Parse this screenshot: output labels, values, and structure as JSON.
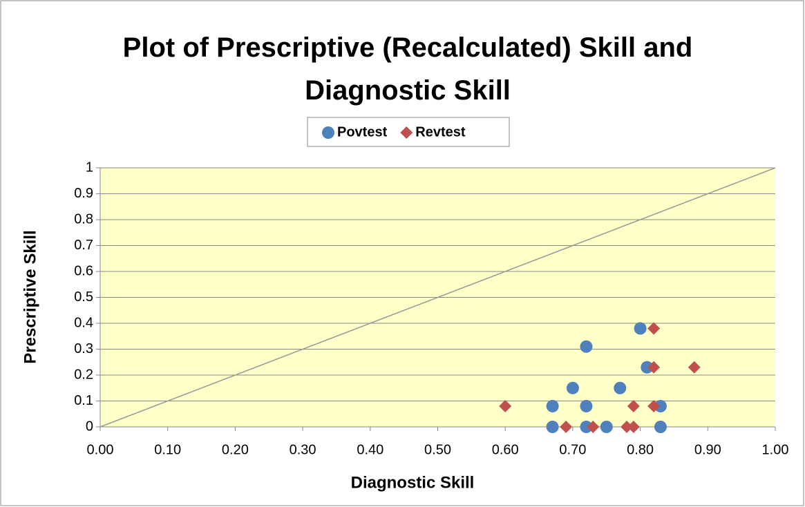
{
  "chart_data": {
    "type": "scatter",
    "title": "Plot of Prescriptive (Recalculated) Skill and Diagnostic Skill",
    "x_label": "Diagnostic Skill",
    "y_label": "Prescriptive Skill",
    "series": [
      {
        "name": "Povtest",
        "color": "#4f81bd",
        "marker": "circle",
        "x": [
          0.8,
          0.72,
          0.81,
          0.7,
          0.77,
          0.67,
          0.72,
          0.83,
          0.67,
          0.72,
          0.75,
          0.83
        ],
        "values": [
          0.38,
          0.31,
          0.23,
          0.15,
          0.15,
          0.08,
          0.08,
          0.08,
          0,
          0,
          0,
          0
        ]
      },
      {
        "name": "Revtest",
        "color": "#c0504d",
        "marker": "diamond",
        "x": [
          0.82,
          0.82,
          0.88,
          0.6,
          0.79,
          0.82,
          0.69,
          0.73,
          0.78,
          0.79
        ],
        "values": [
          0.38,
          0.23,
          0.23,
          0.08,
          0.08,
          0.08,
          0,
          0,
          0,
          0
        ]
      }
    ],
    "xlim": [
      0,
      1
    ],
    "xticks": [
      {
        "value": 0,
        "label": "0.00"
      },
      {
        "value": 0.1,
        "label": "0.10"
      },
      {
        "value": 0.2,
        "label": "0.20"
      },
      {
        "value": 0.3,
        "label": "0.30"
      },
      {
        "value": 0.4,
        "label": "0.40"
      },
      {
        "value": 0.5,
        "label": "0.50"
      },
      {
        "value": 0.6,
        "label": "0.60"
      },
      {
        "value": 0.7,
        "label": "0.70"
      },
      {
        "value": 0.8,
        "label": "0.80"
      },
      {
        "value": 0.9,
        "label": "0.90"
      },
      {
        "value": 1,
        "label": "1.00"
      }
    ],
    "ylim": [
      0,
      1
    ],
    "yticks": [
      0,
      0.1,
      0.2,
      0.3,
      0.4,
      0.5,
      0.6,
      0.7,
      0.8,
      0.9,
      1
    ],
    "grid": true,
    "legend": "top",
    "plot_background": "#ffffc8"
  }
}
